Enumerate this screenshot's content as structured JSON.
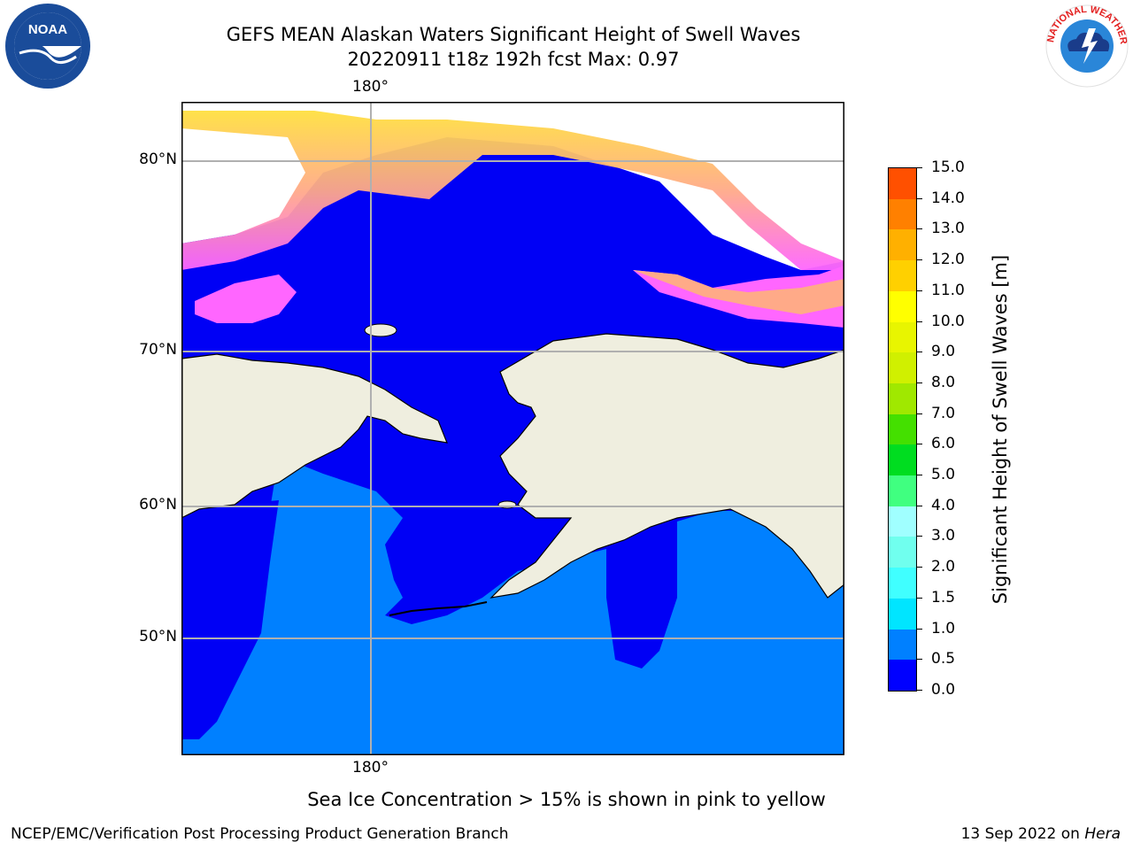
{
  "title": {
    "line1": "GEFS MEAN Alaskan Waters Significant Height of Swell Waves",
    "line2": "20220911 t18z 192h fcst   Max: 0.97"
  },
  "map": {
    "lon_tick_top": "180°",
    "lon_tick_bottom": "180°",
    "lat_ticks": [
      "80°N",
      "70°N",
      "60°N",
      "50°N"
    ],
    "colors": {
      "land": "#efeedf",
      "wave_0_0_5": "#0000f5",
      "wave_0_5_1_0": "#0080ff",
      "ice_low": "#ff66ff",
      "ice_mid": "#ffaa88",
      "ice_high": "#ffe040",
      "grid": "#b0b0b0"
    }
  },
  "colorbar": {
    "title": "Significant Height of Swell Waves [m]",
    "labels": [
      "15.0",
      "14.0",
      "13.0",
      "12.0",
      "11.0",
      "10.0",
      "9.0",
      "8.0",
      "7.0",
      "6.0",
      "5.0",
      "4.0",
      "3.0",
      "2.0",
      "1.5",
      "1.0",
      "0.5",
      "0.0"
    ],
    "colors": [
      "#0000ff",
      "#0080ff",
      "#00e5ff",
      "#40ffff",
      "#70ffee",
      "#a0ffff",
      "#40ff80",
      "#00dd20",
      "#44e000",
      "#a0e800",
      "#d0f000",
      "#e8f500",
      "#ffff00",
      "#ffd000",
      "#ffb000",
      "#ff8000",
      "#ff5000",
      "#ff2000",
      "#ff0000"
    ]
  },
  "logos": {
    "left": "NOAA",
    "right": "NATIONAL WEATHER SERVICE"
  },
  "note": "Sea Ice Concentration > 15% is shown in pink to yellow",
  "footer": {
    "left": "NCEP/EMC/Verification Post Processing Product Generation Branch",
    "right_date": "13 Sep 2022 on ",
    "right_host": "Hera"
  }
}
